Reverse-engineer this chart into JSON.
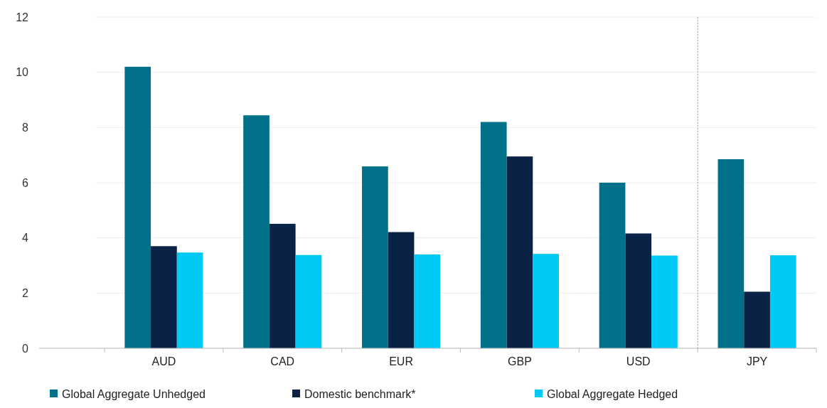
{
  "chart_data": {
    "type": "bar",
    "categories": [
      "AUD",
      "CAD",
      "EUR",
      "GBP",
      "USD",
      "JPY"
    ],
    "series": [
      {
        "name": "Global Aggregate Unhedged",
        "color": "#007189",
        "values": [
          10.2,
          8.44,
          6.59,
          8.2,
          6.0,
          6.85
        ]
      },
      {
        "name": "Domestic benchmark*",
        "color": "#0a2246",
        "values": [
          3.7,
          4.51,
          4.21,
          6.95,
          4.16,
          2.05
        ]
      },
      {
        "name": "Global Aggregate Hedged",
        "color": "#00c9f5",
        "values": [
          3.47,
          3.38,
          3.4,
          3.42,
          3.36,
          3.37
        ]
      }
    ],
    "ylim": [
      0,
      12
    ],
    "yticks": [
      0,
      2,
      4,
      6,
      8,
      10,
      12
    ],
    "grid": "y",
    "legend": "bottom",
    "ref_lines": [
      {
        "axis": "x",
        "value": "JPY",
        "line_style": "dotted",
        "color": "#999999"
      }
    ]
  }
}
